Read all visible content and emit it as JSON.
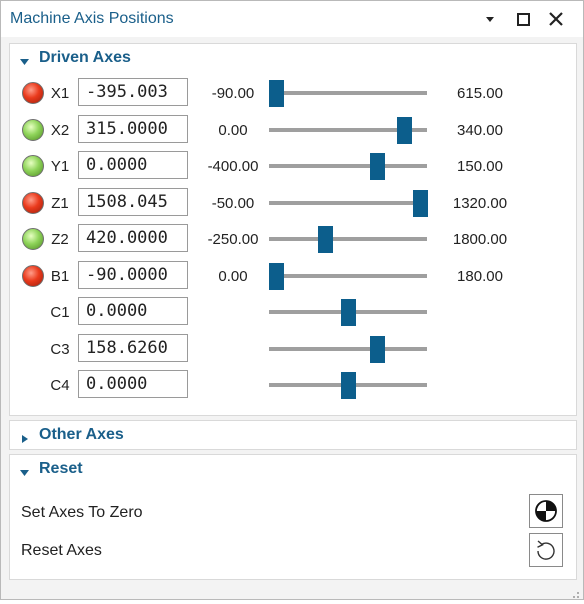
{
  "window": {
    "title": "Machine Axis Positions",
    "icons": [
      "chevron-down-icon",
      "maximize-icon",
      "close-icon"
    ]
  },
  "driven_axes": {
    "title": "Driven Axes",
    "axes": [
      {
        "name": "X1",
        "value": "-395.003",
        "min": "-90.00",
        "max": "615.00",
        "status": "red",
        "position": 0.0
      },
      {
        "name": "X2",
        "value": "315.0000",
        "min": "0.00",
        "max": "340.00",
        "status": "green",
        "position": 0.89
      },
      {
        "name": "Y1",
        "value": "0.0000",
        "min": "-400.00",
        "max": "150.00",
        "status": "green",
        "position": 0.7
      },
      {
        "name": "Z1",
        "value": "1508.045",
        "min": "-50.00",
        "max": "1320.00",
        "status": "red",
        "position": 1.0
      },
      {
        "name": "Z2",
        "value": "420.0000",
        "min": "-250.00",
        "max": "1800.00",
        "status": "green",
        "position": 0.34
      },
      {
        "name": "B1",
        "value": "-90.0000",
        "min": "0.00",
        "max": "180.00",
        "status": "red",
        "position": 0.0
      },
      {
        "name": "C1",
        "value": "0.0000",
        "min": "",
        "max": "",
        "status": "none",
        "position": 0.5
      },
      {
        "name": "C3",
        "value": "158.6260",
        "min": "",
        "max": "",
        "status": "none",
        "position": 0.7
      },
      {
        "name": "C4",
        "value": "0.0000",
        "min": "",
        "max": "",
        "status": "none",
        "position": 0.5
      }
    ]
  },
  "other_axes": {
    "title": "Other Axes"
  },
  "reset": {
    "title": "Reset",
    "set_zero_label": "Set Axes To Zero",
    "reset_label": "Reset Axes"
  },
  "colors": {
    "accent": "#1a5f8a",
    "thumb": "#0c5e8c",
    "track": "#9f9f9f",
    "led_red": "#ea3a1c",
    "led_green": "#8fd45a"
  }
}
